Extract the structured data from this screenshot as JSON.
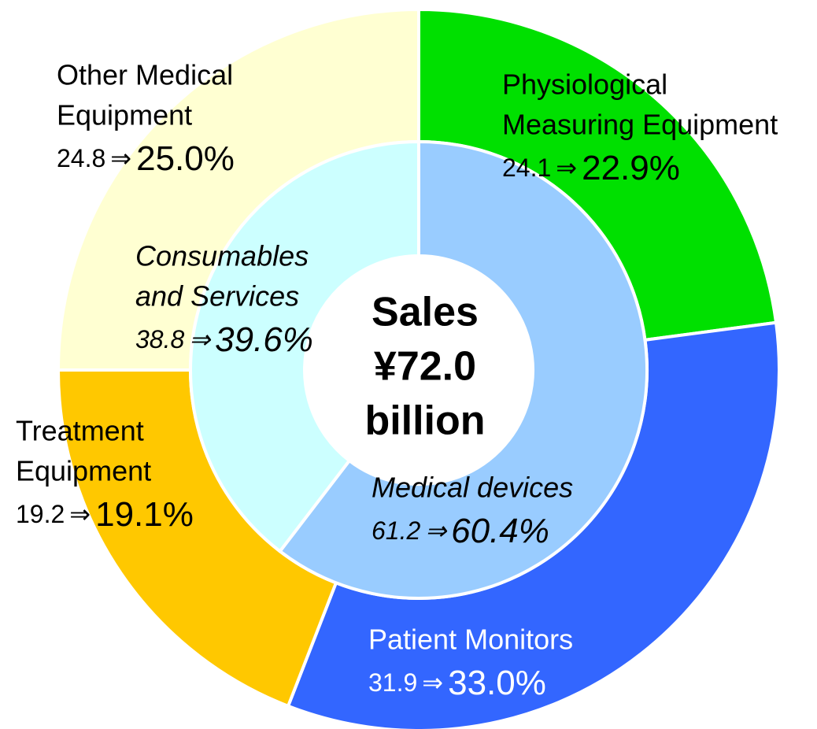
{
  "chart_data": {
    "type": "donut",
    "arrow": "⇒",
    "center_lines": [
      "Sales",
      "¥72.0",
      "billion"
    ],
    "outer": {
      "categories": [
        [
          "Physiological",
          "Measuring Equipment"
        ],
        [
          "Patient Monitors"
        ],
        [
          "Treatment",
          "Equipment"
        ],
        [
          "Other Medical",
          "Equipment"
        ]
      ],
      "previous": [
        24.1,
        31.9,
        19.2,
        24.8
      ],
      "values": [
        22.9,
        33.0,
        19.1,
        25.0
      ],
      "value_labels": [
        "22.9%",
        "33.0%",
        "19.1%",
        "25.0%"
      ],
      "colors": [
        "#00e000",
        "#3366ff",
        "#ffc800",
        "#ffffd2"
      ]
    },
    "inner": {
      "categories": [
        [
          "Medical devices"
        ],
        [
          "Consumables",
          "and Services"
        ]
      ],
      "previous": [
        61.2,
        38.8
      ],
      "values": [
        60.4,
        39.6
      ],
      "value_labels": [
        "60.4%",
        "39.6%"
      ],
      "colors": [
        "#99ccff",
        "#ccffff"
      ]
    }
  }
}
